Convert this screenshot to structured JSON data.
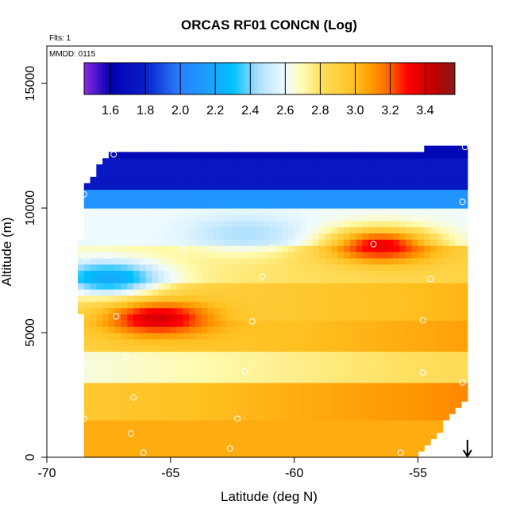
{
  "chart_data": {
    "type": "heatmap",
    "title": "ORCAS RF01 CONCN (Log)",
    "xlabel": "Latitude (deg N)",
    "ylabel": "Altitude (m)",
    "xlim": [
      -70,
      -52
    ],
    "ylim": [
      0,
      16500
    ],
    "x_ticks": [
      -70,
      -65,
      -60,
      -55
    ],
    "x_tick_labels": [
      "-70",
      "-65",
      "-60",
      "-55"
    ],
    "y_ticks": [
      0,
      5000,
      10000,
      15000
    ],
    "y_tick_labels": [
      "0",
      "5000",
      "10000",
      "15000"
    ],
    "annotations": {
      "flights": "Flts: 1",
      "date": "MMDD: 0115"
    },
    "colorbar": {
      "min": 1.45,
      "max": 3.57,
      "ticks": [
        1.6,
        1.8,
        2.0,
        2.2,
        2.4,
        2.6,
        2.8,
        3.0,
        3.2,
        3.4
      ],
      "tick_labels": [
        "1.6",
        "1.8",
        "2.0",
        "2.2",
        "2.4",
        "2.6",
        "2.8",
        "3.0",
        "3.2",
        "3.4"
      ],
      "stops": [
        [
          1.45,
          "#8a2be2"
        ],
        [
          1.6,
          "#0000b0"
        ],
        [
          1.8,
          "#0a1fc8"
        ],
        [
          2.0,
          "#2a80ff"
        ],
        [
          2.2,
          "#18a8ff"
        ],
        [
          2.3,
          "#00c0ff"
        ],
        [
          2.45,
          "#b0e0ff"
        ],
        [
          2.6,
          "#f0fbff"
        ],
        [
          2.7,
          "#fffbb0"
        ],
        [
          2.8,
          "#ffe060"
        ],
        [
          3.0,
          "#ffc020"
        ],
        [
          3.1,
          "#ff9800"
        ],
        [
          3.2,
          "#ff6000"
        ],
        [
          3.3,
          "#ff0000"
        ],
        [
          3.45,
          "#c00000"
        ],
        [
          3.57,
          "#8b1a1a"
        ]
      ]
    },
    "field_structure": {
      "outline": [
        [
          -68.5,
          0
        ],
        [
          -68.5,
          5700
        ],
        [
          -68.8,
          5800
        ],
        [
          -68.5,
          10800
        ],
        [
          -67.5,
          12200
        ],
        [
          -53,
          12400
        ],
        [
          -53,
          2500
        ],
        [
          -55,
          0
        ]
      ],
      "layers": [
        {
          "alt_low": 12000,
          "alt_high": 12400,
          "value": 1.65
        },
        {
          "alt_low": 10800,
          "alt_high": 12000,
          "value": 1.75
        },
        {
          "alt_low": 10000,
          "alt_high": 10800,
          "value": 2.1
        },
        {
          "alt_low": 8500,
          "alt_high": 10000,
          "value": 2.6
        },
        {
          "alt_low": 7000,
          "alt_high": 8500,
          "value": 2.7
        },
        {
          "alt_low": 5500,
          "alt_high": 7000,
          "value": 2.85
        },
        {
          "alt_low": 4200,
          "alt_high": 5500,
          "value": 2.9
        },
        {
          "alt_low": 3000,
          "alt_high": 4200,
          "value": 2.65
        },
        {
          "alt_low": 1500,
          "alt_high": 3000,
          "value": 2.95
        },
        {
          "alt_low": 0,
          "alt_high": 1500,
          "value": 3.05
        }
      ],
      "features": [
        {
          "kind": "plume",
          "lat_center": -65.5,
          "alt_center": 5600,
          "value": 3.4
        },
        {
          "kind": "plume",
          "lat_center": -56.5,
          "alt_center": 8500,
          "value": 3.35
        },
        {
          "kind": "low",
          "lat_center": -67.5,
          "alt_center": 7200,
          "value": 2.2
        },
        {
          "kind": "low",
          "lat_center": -62,
          "alt_center": 9000,
          "value": 2.45
        }
      ]
    },
    "sample_points": [
      {
        "lat": -67.3,
        "alt": 12150
      },
      {
        "lat": -58.2,
        "alt": 12450
      },
      {
        "lat": -53.1,
        "alt": 12450
      },
      {
        "lat": -68.5,
        "alt": 10550
      },
      {
        "lat": -54.8,
        "alt": 9600
      },
      {
        "lat": -53.2,
        "alt": 10250
      },
      {
        "lat": -68.4,
        "alt": 8000
      },
      {
        "lat": -67.5,
        "alt": 8100
      },
      {
        "lat": -64.5,
        "alt": 8350
      },
      {
        "lat": -60.9,
        "alt": 8400
      },
      {
        "lat": -56.8,
        "alt": 8550
      },
      {
        "lat": -61.3,
        "alt": 7250
      },
      {
        "lat": -54.5,
        "alt": 7150
      },
      {
        "lat": -68.8,
        "alt": 5650
      },
      {
        "lat": -67.2,
        "alt": 5650
      },
      {
        "lat": -61.7,
        "alt": 5450
      },
      {
        "lat": -54.8,
        "alt": 5500
      },
      {
        "lat": -68.5,
        "alt": 3750
      },
      {
        "lat": -66.8,
        "alt": 4050
      },
      {
        "lat": -62.0,
        "alt": 3450
      },
      {
        "lat": -54.8,
        "alt": 3400
      },
      {
        "lat": -53.2,
        "alt": 3000
      },
      {
        "lat": -66.5,
        "alt": 2400
      },
      {
        "lat": -68.5,
        "alt": 1550
      },
      {
        "lat": -62.3,
        "alt": 1550
      },
      {
        "lat": -66.6,
        "alt": 950
      },
      {
        "lat": -62.6,
        "alt": 350
      },
      {
        "lat": -66.1,
        "alt": 180
      },
      {
        "lat": -55.7,
        "alt": 180
      }
    ],
    "direction_arrow": {
      "lat": -53,
      "alt_top": 700,
      "alt_bottom": 0
    }
  }
}
